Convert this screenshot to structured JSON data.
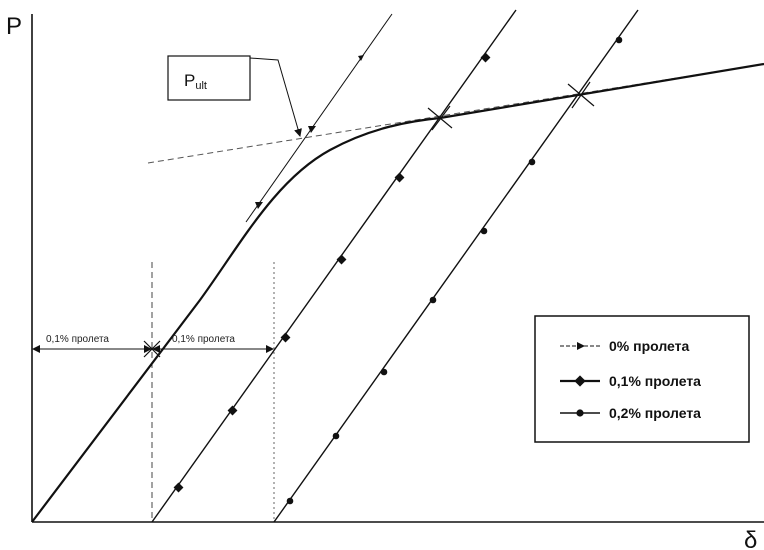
{
  "axes": {
    "y_label": "P",
    "x_label": "δ"
  },
  "annotations": {
    "p_ult_label": "P",
    "p_ult_subscript": "ult",
    "offset_left": "0,1% пролета",
    "offset_right": "0,1% пролета"
  },
  "legend": {
    "items": [
      {
        "label": "0% пролета",
        "marker": "arrow"
      },
      {
        "label": "0,1% пролета",
        "marker": "diamond"
      },
      {
        "label": "0,2% пролета",
        "marker": "circle"
      }
    ]
  },
  "colors": {
    "ink": "#111111",
    "guide": "#555555"
  }
}
